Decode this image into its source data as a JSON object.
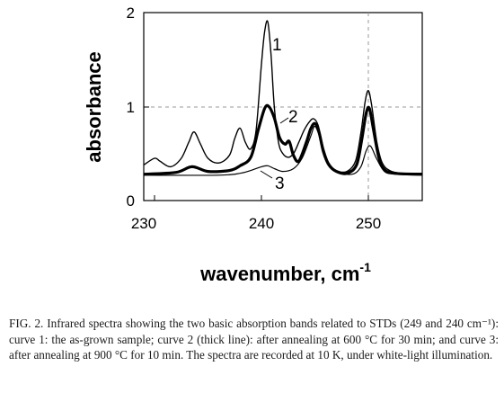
{
  "figure": {
    "caption": "FIG. 2. Infrared spectra showing the two basic absorption bands related to STDs (249 and 240 cm⁻¹): curve 1: the as-grown sample; curve 2 (thick line): after annealing at 600 °C for 30 min; and curve 3: after annealing at 900 °C for 10 min. The spectra are recorded at 10 K, under white-light illumination."
  },
  "chart_data": {
    "type": "line",
    "title": "",
    "xlabel": "wavenumber, cm",
    "xlabel_superscript": "-1",
    "ylabel": "absorbance",
    "xlim": [
      229,
      255
    ],
    "ylim": [
      0,
      2
    ],
    "xticks": [
      230,
      240,
      250
    ],
    "yticks": [
      0,
      1,
      2
    ],
    "grid": "dashed at y=1 and x=250",
    "colors": {
      "line": "#000000",
      "grid": "#9a9a9a"
    },
    "annotations": [
      "1",
      "2",
      "3"
    ],
    "series": [
      {
        "label": "1",
        "x": [
          229.0,
          230.0,
          230.5,
          231.5,
          232.5,
          233.2,
          233.7,
          234.3,
          235.0,
          236.0,
          237.0,
          237.5,
          238.0,
          238.5,
          239.0,
          239.5,
          240.0,
          240.3,
          240.6,
          240.9,
          241.2,
          241.6,
          242.0,
          242.5,
          243.0,
          243.5,
          244.0,
          244.5,
          244.9,
          245.3,
          245.8,
          246.3,
          247.0,
          248.0,
          248.8,
          249.3,
          249.7,
          250.0,
          250.3,
          250.8,
          251.3,
          252.0,
          253.0,
          254.0,
          255.0
        ],
        "y": [
          0.38,
          0.45,
          0.42,
          0.36,
          0.45,
          0.62,
          0.73,
          0.6,
          0.45,
          0.4,
          0.48,
          0.66,
          0.77,
          0.62,
          0.55,
          0.75,
          1.45,
          1.8,
          1.9,
          1.55,
          1.0,
          0.62,
          0.5,
          0.46,
          0.5,
          0.62,
          0.75,
          0.84,
          0.87,
          0.8,
          0.56,
          0.4,
          0.32,
          0.31,
          0.42,
          0.72,
          1.05,
          1.17,
          1.02,
          0.62,
          0.4,
          0.32,
          0.29,
          0.29,
          0.29
        ]
      },
      {
        "label": "2",
        "x": [
          229.0,
          232.0,
          233.5,
          235.0,
          237.0,
          238.0,
          239.0,
          239.7,
          240.3,
          240.7,
          241.2,
          241.7,
          242.2,
          242.6,
          243.0,
          243.5,
          244.2,
          244.6,
          245.0,
          245.4,
          245.8,
          246.3,
          247.0,
          248.0,
          248.9,
          249.4,
          249.8,
          250.1,
          250.5,
          251.0,
          251.5,
          252.5,
          255.0
        ],
        "y": [
          0.28,
          0.3,
          0.36,
          0.31,
          0.32,
          0.37,
          0.46,
          0.75,
          0.98,
          1.0,
          0.88,
          0.67,
          0.6,
          0.63,
          0.48,
          0.42,
          0.62,
          0.76,
          0.82,
          0.72,
          0.52,
          0.38,
          0.31,
          0.29,
          0.38,
          0.66,
          0.93,
          0.98,
          0.74,
          0.45,
          0.33,
          0.29,
          0.28
        ]
      },
      {
        "label": "3",
        "x": [
          229.0,
          236.0,
          238.0,
          239.0,
          240.0,
          240.6,
          241.2,
          242.0,
          243.0,
          243.8,
          244.6,
          245.0,
          245.5,
          246.2,
          247.0,
          248.5,
          249.3,
          249.8,
          250.2,
          250.8,
          251.5,
          252.5,
          255.0
        ],
        "y": [
          0.27,
          0.27,
          0.29,
          0.32,
          0.36,
          0.37,
          0.34,
          0.31,
          0.34,
          0.45,
          0.68,
          0.79,
          0.66,
          0.42,
          0.31,
          0.28,
          0.36,
          0.53,
          0.58,
          0.44,
          0.31,
          0.28,
          0.27
        ]
      }
    ]
  }
}
